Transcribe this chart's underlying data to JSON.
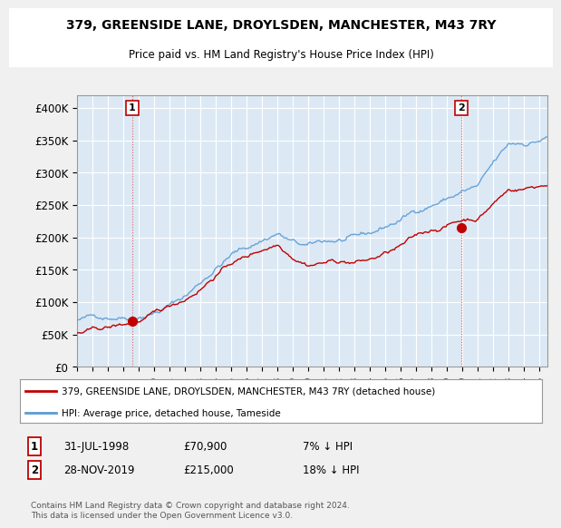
{
  "title": "379, GREENSIDE LANE, DROYLSDEN, MANCHESTER, M43 7RY",
  "subtitle": "Price paid vs. HM Land Registry's House Price Index (HPI)",
  "legend_line1": "379, GREENSIDE LANE, DROYLSDEN, MANCHESTER, M43 7RY (detached house)",
  "legend_line2": "HPI: Average price, detached house, Tameside",
  "annotation1_date": "31-JUL-1998",
  "annotation1_price": "£70,900",
  "annotation1_hpi": "7% ↓ HPI",
  "annotation2_date": "28-NOV-2019",
  "annotation2_price": "£215,000",
  "annotation2_hpi": "18% ↓ HPI",
  "footnote": "Contains HM Land Registry data © Crown copyright and database right 2024.\nThis data is licensed under the Open Government Licence v3.0.",
  "hpi_color": "#5b9bd5",
  "price_color": "#c00000",
  "marker_color": "#c00000",
  "background_color": "#f0f0f0",
  "plot_bg_color": "#dce9f5",
  "ylim": [
    0,
    420000
  ],
  "yticks": [
    0,
    50000,
    100000,
    150000,
    200000,
    250000,
    300000,
    350000,
    400000
  ],
  "ytick_labels": [
    "£0",
    "£50K",
    "£100K",
    "£150K",
    "£200K",
    "£250K",
    "£300K",
    "£350K",
    "£400K"
  ],
  "sale1_x": 1998.58,
  "sale1_y": 70900,
  "sale2_x": 2019.91,
  "sale2_y": 215000,
  "xlim": [
    1995.0,
    2025.5
  ],
  "xtick_years": [
    1995,
    1996,
    1997,
    1998,
    1999,
    2000,
    2001,
    2002,
    2003,
    2004,
    2005,
    2006,
    2007,
    2008,
    2009,
    2010,
    2011,
    2012,
    2013,
    2014,
    2015,
    2016,
    2017,
    2018,
    2019,
    2020,
    2021,
    2022,
    2023,
    2024,
    2025
  ]
}
